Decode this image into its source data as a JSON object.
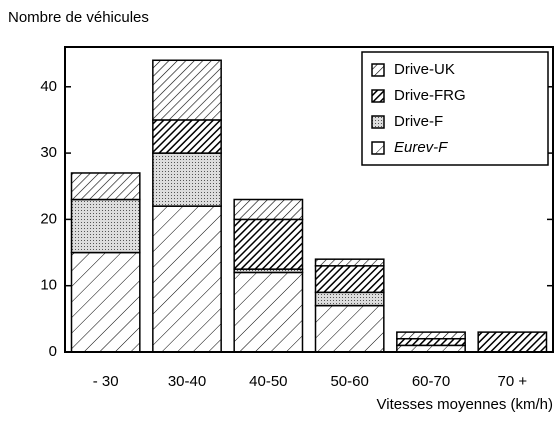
{
  "chart_data": {
    "type": "bar",
    "stacked": true,
    "y_label": "Nombre de véhicules",
    "x_label": "Vitesses moyennes (km/h)",
    "categories": [
      "- 30",
      "30-40",
      "40-50",
      "50-60",
      "60-70",
      "70 +"
    ],
    "series": [
      {
        "name": "Drive-UK",
        "color": "#000000",
        "values": [
          4,
          9,
          3,
          1,
          1,
          0
        ]
      },
      {
        "name": "Drive-FRG",
        "color": "#000000",
        "values": [
          0,
          5,
          7.5,
          4,
          1,
          3
        ]
      },
      {
        "name": "Drive-F",
        "color": "#000000",
        "values": [
          8,
          8,
          0.5,
          2,
          0,
          0
        ]
      },
      {
        "name": "Eurev-F",
        "color": "#000000",
        "values": [
          15,
          22,
          12,
          7,
          1,
          0
        ]
      }
    ],
    "ylim": [
      0,
      46
    ],
    "yticks": [
      0,
      10,
      20,
      30,
      40
    ],
    "legend": "upper right"
  }
}
